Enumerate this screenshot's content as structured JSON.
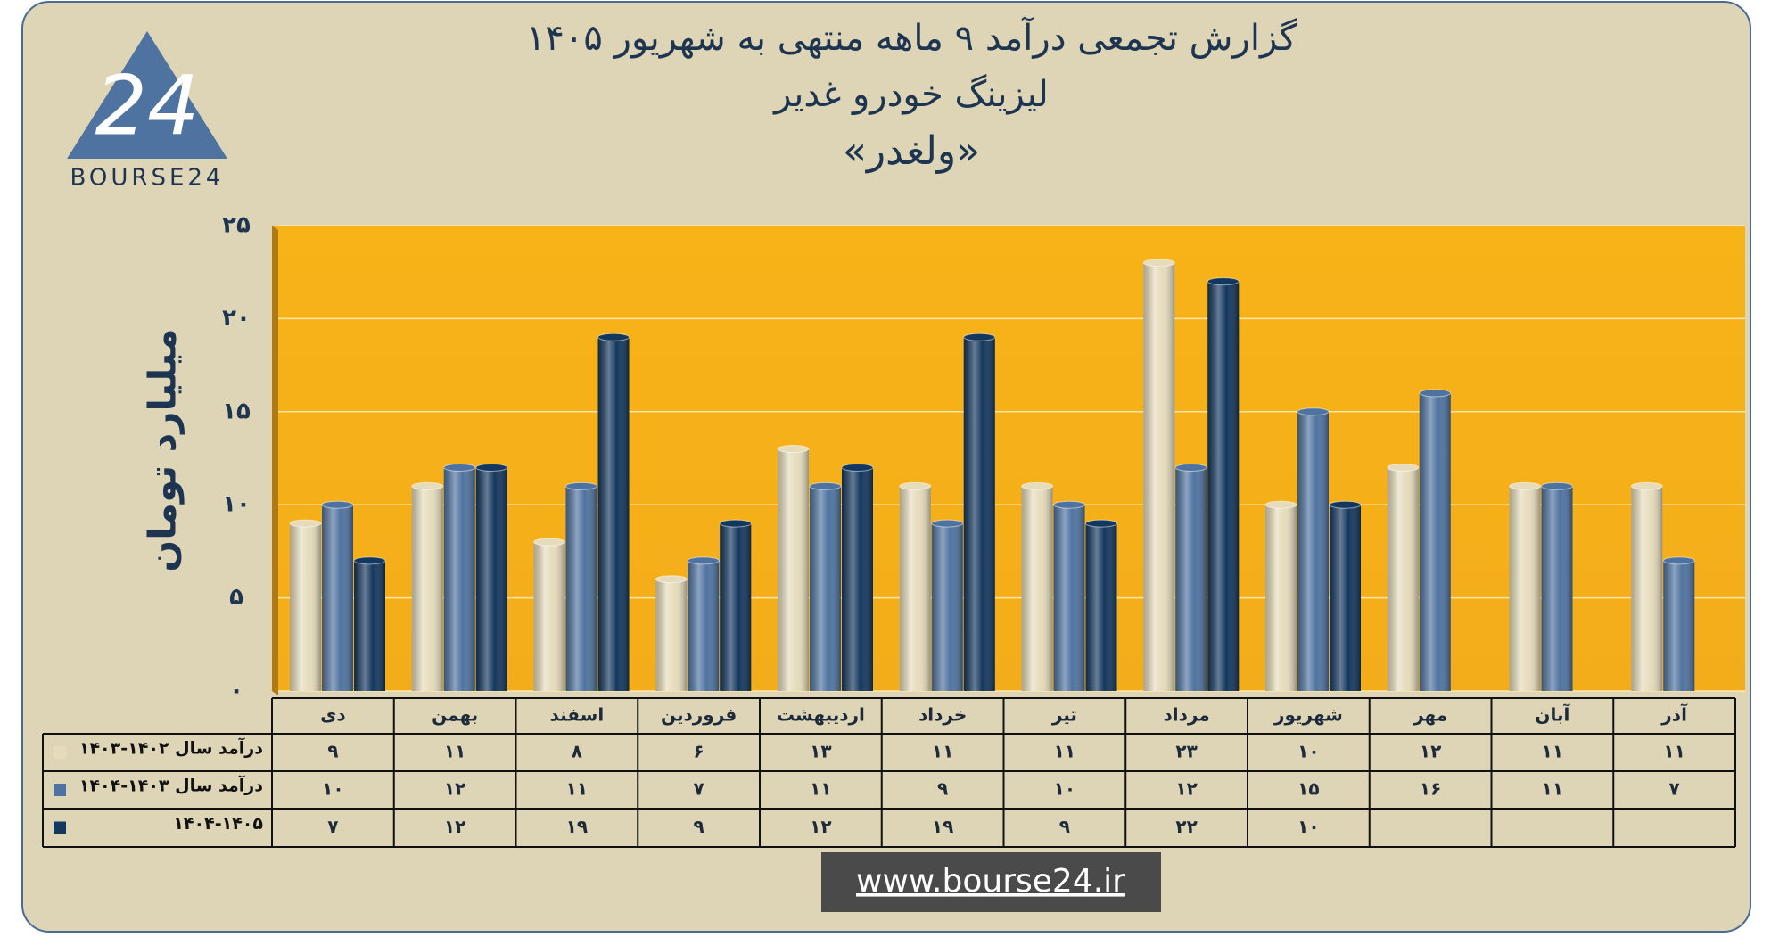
{
  "chart_data": {
    "type": "bar",
    "title": "گزارش تجمعی درآمد ۹ ماهه منتهی به شهریور ۱۴۰۵",
    "subtitle": "لیزینگ خودرو غدیر",
    "ticker": "«ولغدر»",
    "y_label": "میلیارد تومان",
    "logo_text": "BOURSE24",
    "logo_mark": "24",
    "footer_url": "www.bourse24.ir",
    "categories": [
      "دی",
      "بهمن",
      "اسفند",
      "فروردین",
      "اردیبهشت",
      "خرداد",
      "تیر",
      "مرداد",
      "شهریور",
      "مهر",
      "آبان",
      "آذر"
    ],
    "series": [
      {
        "name": "درآمد سال ۱۴۰۲-۱۴۰۳",
        "color": "#e6dcbc",
        "values": [
          9,
          11,
          8,
          6,
          13,
          11,
          11,
          23,
          10,
          12,
          11,
          11
        ],
        "value_labels": [
          "۹",
          "۱۱",
          "۸",
          "۶",
          "۱۳",
          "۱۱",
          "۱۱",
          "۲۳",
          "۱۰",
          "۱۲",
          "۱۱",
          "۱۱"
        ]
      },
      {
        "name": "درآمد سال ۱۴۰۳-۱۴۰۴",
        "color": "#4f73a0",
        "values": [
          10,
          12,
          11,
          7,
          11,
          9,
          10,
          12,
          15,
          16,
          11,
          7
        ],
        "value_labels": [
          "۱۰",
          "۱۲",
          "۱۱",
          "۷",
          "۱۱",
          "۹",
          "۱۰",
          "۱۲",
          "۱۵",
          "۱۶",
          "۱۱",
          "۷"
        ]
      },
      {
        "name": "۱۴۰۴-۱۴۰۵",
        "color": "#14375e",
        "values": [
          7,
          12,
          19,
          9,
          12,
          19,
          9,
          22,
          10,
          null,
          null,
          null
        ],
        "value_labels": [
          "۷",
          "۱۲",
          "۱۹",
          "۹",
          "۱۲",
          "۱۹",
          "۹",
          "۲۲",
          "۱۰",
          null,
          null,
          null
        ]
      }
    ],
    "ylim": [
      0,
      25
    ],
    "yticks": [
      {
        "value": 0,
        "label": "۰"
      },
      {
        "value": 5,
        "label": "۵"
      },
      {
        "value": 10,
        "label": "۱۰"
      },
      {
        "value": 15,
        "label": "۱۵"
      },
      {
        "value": 20,
        "label": "۲۰"
      },
      {
        "value": 25,
        "label": "۲۵"
      }
    ],
    "grid": true
  }
}
